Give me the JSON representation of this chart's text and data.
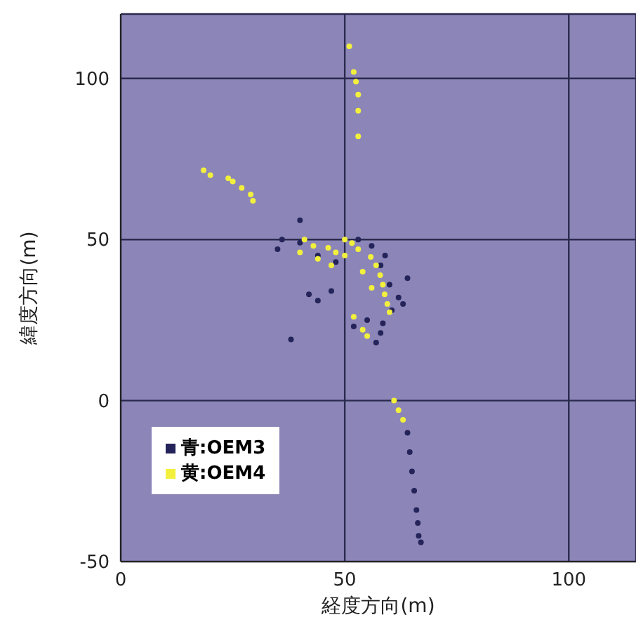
{
  "chart_data": {
    "type": "scatter",
    "xlabel": "経度方向(m)",
    "ylabel": "緯度方向(m)",
    "xlim": [
      0,
      115
    ],
    "ylim": [
      -50,
      120
    ],
    "xticks": [
      0,
      50,
      100
    ],
    "yticks": [
      -50,
      0,
      50,
      100
    ],
    "grid": true,
    "legend": "bottom left",
    "marker": "circle",
    "series": [
      {
        "name": "青:OEM3",
        "color": "#24245a",
        "x": [
          64,
          64.5,
          65,
          65.5,
          66,
          66.3,
          66.5,
          67,
          36,
          35,
          40,
          44,
          48,
          53,
          56,
          58,
          60,
          62,
          63,
          60.5,
          58.5,
          58,
          57,
          42,
          44,
          47,
          38,
          52,
          55,
          64,
          40,
          59
        ],
        "values": [
          -10,
          -16,
          -22,
          -28,
          -34,
          -38,
          -42,
          -44,
          50,
          47,
          49,
          45,
          43,
          50,
          48,
          42,
          36,
          32,
          30,
          28,
          24,
          21,
          18,
          33,
          31,
          34,
          19,
          23,
          25,
          38,
          56,
          45
        ]
      },
      {
        "name": "黄:OEM4",
        "color": "#f2f03c",
        "x": [
          51,
          52,
          52.5,
          53,
          53,
          53,
          18.5,
          20,
          24,
          25,
          27,
          29,
          29.5,
          41,
          43,
          46.3,
          48,
          50,
          51.6,
          53,
          55.8,
          57,
          57.9,
          58.5,
          58.9,
          59.5,
          60,
          40,
          44,
          47,
          50,
          54,
          56,
          52,
          54,
          55,
          61,
          62,
          63
        ],
        "values": [
          110,
          102,
          99,
          95,
          90,
          82,
          71.5,
          70,
          69,
          68,
          66,
          64,
          62,
          50,
          48,
          47.4,
          46,
          50,
          48.9,
          47,
          44.6,
          42,
          38.9,
          36,
          33,
          30,
          27.4,
          46,
          44,
          42,
          45,
          40,
          35,
          26,
          22,
          20,
          0,
          -3,
          -6
        ]
      }
    ]
  }
}
